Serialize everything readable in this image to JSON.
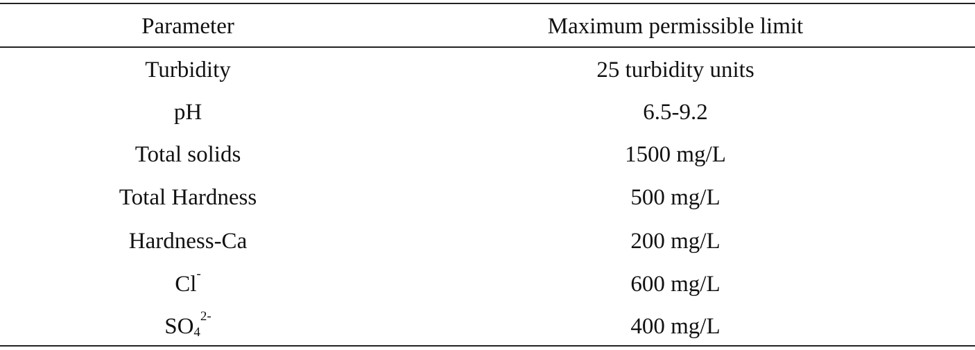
{
  "table": {
    "headers": {
      "parameter": "Parameter",
      "limit": "Maximum permissible limit"
    },
    "rows": [
      {
        "parameter": "Turbidity",
        "limit": "25 turbidity units"
      },
      {
        "parameter": "pH",
        "limit": "6.5-9.2"
      },
      {
        "parameter": "Total solids",
        "limit": "1500 mg/L"
      },
      {
        "parameter": "Total Hardness",
        "limit": "500 mg/L"
      },
      {
        "parameter": "Hardness-Ca",
        "limit": "200 mg/L"
      },
      {
        "parameter": "Cl",
        "parameter_sup": "-",
        "limit": "600 mg/L"
      },
      {
        "parameter": "SO",
        "parameter_sub": "4",
        "parameter_sup": "2-",
        "limit": "400 mg/L"
      }
    ]
  }
}
